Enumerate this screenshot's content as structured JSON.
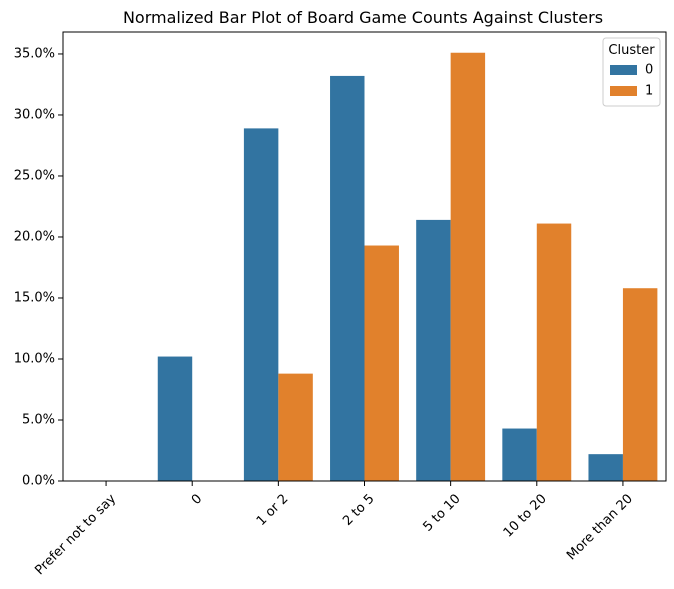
{
  "chart_data": {
    "type": "bar",
    "title": "Normalized Bar Plot of Board Game Counts Against Clusters",
    "xlabel": "",
    "ylabel": "",
    "categories": [
      "Prefer not to say",
      "0",
      "1 or 2",
      "2 to 5",
      "5 to 10",
      "10 to 20",
      "More than 20"
    ],
    "series": [
      {
        "name": "0",
        "color": "#3274a1",
        "values": [
          0.0,
          10.2,
          28.9,
          33.2,
          21.4,
          4.3,
          2.2
        ]
      },
      {
        "name": "1",
        "color": "#e1812c",
        "values": [
          0.0,
          0.0,
          8.8,
          19.3,
          35.1,
          21.1,
          15.8
        ]
      }
    ],
    "ylim": [
      0,
      36.8
    ],
    "yticks": [
      0,
      5,
      10,
      15,
      20,
      25,
      30,
      35
    ],
    "ytick_format": "percent_1dp",
    "grid": false,
    "legend": {
      "title": "Cluster",
      "placement": "top-right"
    }
  }
}
